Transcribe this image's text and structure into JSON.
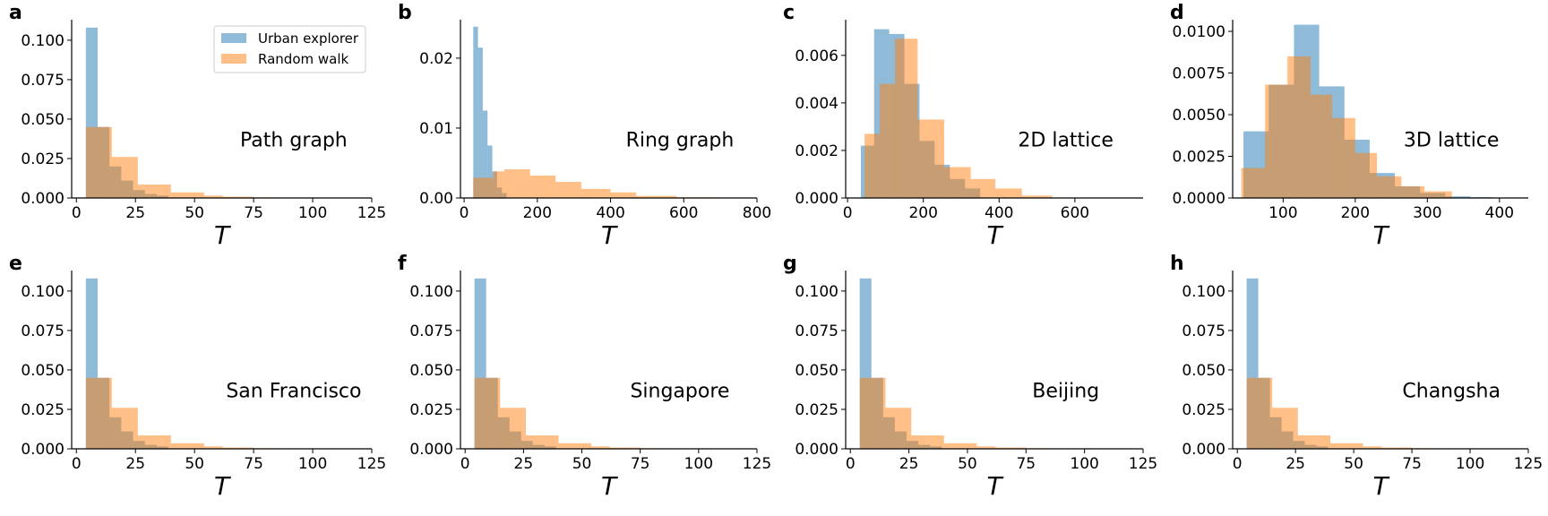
{
  "figure": {
    "x_label": "T",
    "colors": {
      "urban": "#1f77b4",
      "random": "#ff7f0e"
    }
  },
  "legend": {
    "urban_label": "Urban explorer",
    "random_label": "Random walk"
  },
  "chart_data": [
    {
      "type": "histogram",
      "letter": "a",
      "annotation": "Path graph",
      "xlabel": "T",
      "xlim": [
        -2,
        125
      ],
      "ylim": [
        0,
        0.113
      ],
      "xticks": [
        "0",
        "25",
        "50",
        "75",
        "100",
        "125"
      ],
      "xtick_values": [
        0,
        25,
        50,
        75,
        100,
        125
      ],
      "yticks": [
        "0.000",
        "0.025",
        "0.050",
        "0.075",
        "0.100"
      ],
      "ytick_values": [
        0,
        0.025,
        0.05,
        0.075,
        0.1
      ],
      "legend": true,
      "series": [
        {
          "name": "Urban explorer",
          "color": "#1f77b4",
          "edges": [
            4,
            9,
            14,
            19,
            24,
            29,
            34,
            39
          ],
          "heights": [
            0.108,
            0.045,
            0.02,
            0.011,
            0.005,
            0.0025,
            0.0015
          ]
        },
        {
          "name": "Random walk",
          "color": "#ff7f0e",
          "edges": [
            4,
            15,
            26,
            40,
            54,
            62,
            75,
            85,
            120
          ],
          "heights": [
            0.045,
            0.026,
            0.0085,
            0.0035,
            0.0015,
            0.0008,
            0.0004,
            0.0003
          ]
        }
      ]
    },
    {
      "type": "histogram",
      "letter": "b",
      "annotation": "Ring graph",
      "xlabel": "T",
      "xlim": [
        -10,
        800
      ],
      "ylim": [
        0,
        0.0255
      ],
      "xticks": [
        "0",
        "200",
        "400",
        "600",
        "800"
      ],
      "xtick_values": [
        0,
        200,
        400,
        600,
        800
      ],
      "yticks": [
        "0.00",
        "0.01",
        "0.02"
      ],
      "ytick_values": [
        0,
        0.01,
        0.02
      ],
      "legend": false,
      "series": [
        {
          "name": "Urban explorer",
          "color": "#1f77b4",
          "edges": [
            25,
            38,
            51,
            64,
            77,
            90,
            103,
            116
          ],
          "heights": [
            0.0245,
            0.0215,
            0.0125,
            0.0075,
            0.0038,
            0.0015,
            0.0007
          ]
        },
        {
          "name": "Random walk",
          "color": "#ff7f0e",
          "edges": [
            25,
            80,
            110,
            180,
            250,
            320,
            400,
            470,
            580,
            700
          ],
          "heights": [
            0.0029,
            0.0038,
            0.0041,
            0.0032,
            0.0023,
            0.0013,
            0.0008,
            0.0003,
            0.0001
          ]
        }
      ]
    },
    {
      "type": "histogram",
      "letter": "c",
      "annotation": "2D lattice",
      "xlabel": "T",
      "xlim": [
        -5,
        780
      ],
      "ylim": [
        0,
        0.0075
      ],
      "xticks": [
        "0",
        "200",
        "400",
        "600"
      ],
      "xtick_values": [
        0,
        200,
        400,
        600
      ],
      "yticks": [
        "0.000",
        "0.002",
        "0.004",
        "0.006"
      ],
      "ytick_values": [
        0,
        0.002,
        0.004,
        0.006
      ],
      "legend": false,
      "series": [
        {
          "name": "Urban explorer",
          "color": "#1f77b4",
          "edges": [
            35,
            70,
            110,
            150,
            190,
            230,
            270,
            310,
            350
          ],
          "heights": [
            0.0022,
            0.0071,
            0.0069,
            0.0048,
            0.0024,
            0.0014,
            0.0008,
            0.0004
          ]
        },
        {
          "name": "Random walk",
          "color": "#ff7f0e",
          "edges": [
            45,
            85,
            125,
            185,
            255,
            325,
            390,
            460,
            540
          ],
          "heights": [
            0.0027,
            0.0048,
            0.0067,
            0.0033,
            0.0013,
            0.0008,
            0.0004,
            0.0001
          ]
        }
      ]
    },
    {
      "type": "histogram",
      "letter": "d",
      "annotation": "3D lattice",
      "xlabel": "T",
      "xlim": [
        30,
        440
      ],
      "ylim": [
        0,
        0.0107
      ],
      "xticks": [
        "100",
        "200",
        "300",
        "400"
      ],
      "xtick_values": [
        100,
        200,
        300,
        400
      ],
      "yticks": [
        "0.0000",
        "0.0025",
        "0.0050",
        "0.0075",
        "0.0100"
      ],
      "ytick_values": [
        0,
        0.0025,
        0.005,
        0.0075,
        0.01
      ],
      "legend": false,
      "series": [
        {
          "name": "Urban explorer",
          "color": "#1f77b4",
          "edges": [
            45,
            80,
            115,
            150,
            185,
            220,
            255,
            290,
            325,
            360,
            390
          ],
          "heights": [
            0.004,
            0.0068,
            0.0104,
            0.0067,
            0.0035,
            0.0015,
            0.0007,
            0.0003,
            0.0001,
            5e-05
          ]
        },
        {
          "name": "Random walk",
          "color": "#ff7f0e",
          "edges": [
            42,
            75,
            106,
            138,
            168,
            200,
            230,
            264,
            296,
            334
          ],
          "heights": [
            0.0018,
            0.0068,
            0.0085,
            0.0062,
            0.0048,
            0.0027,
            0.0013,
            0.0007,
            0.0004
          ]
        }
      ]
    },
    {
      "type": "histogram",
      "letter": "e",
      "annotation": "San Francisco",
      "xlabel": "T",
      "xlim": [
        -2,
        125
      ],
      "ylim": [
        0,
        0.113
      ],
      "xticks": [
        "0",
        "25",
        "50",
        "75",
        "100",
        "125"
      ],
      "xtick_values": [
        0,
        25,
        50,
        75,
        100,
        125
      ],
      "yticks": [
        "0.000",
        "0.025",
        "0.050",
        "0.075",
        "0.100"
      ],
      "ytick_values": [
        0,
        0.025,
        0.05,
        0.075,
        0.1
      ],
      "legend": false,
      "series": [
        {
          "name": "Urban explorer",
          "color": "#1f77b4",
          "edges": [
            4,
            9,
            14,
            19,
            24,
            29,
            34,
            39
          ],
          "heights": [
            0.108,
            0.045,
            0.02,
            0.011,
            0.005,
            0.0025,
            0.0015
          ]
        },
        {
          "name": "Random walk",
          "color": "#ff7f0e",
          "edges": [
            4,
            15,
            26,
            40,
            54,
            62,
            75,
            85,
            120
          ],
          "heights": [
            0.045,
            0.026,
            0.0085,
            0.0035,
            0.0015,
            0.0008,
            0.0004,
            0.0003
          ]
        }
      ]
    },
    {
      "type": "histogram",
      "letter": "f",
      "annotation": "Singapore",
      "xlabel": "T",
      "xlim": [
        -2,
        125
      ],
      "ylim": [
        0,
        0.113
      ],
      "xticks": [
        "0",
        "25",
        "50",
        "75",
        "100",
        "125"
      ],
      "xtick_values": [
        0,
        25,
        50,
        75,
        100,
        125
      ],
      "yticks": [
        "0.000",
        "0.025",
        "0.050",
        "0.075",
        "0.100"
      ],
      "ytick_values": [
        0,
        0.025,
        0.05,
        0.075,
        0.1
      ],
      "legend": false,
      "series": [
        {
          "name": "Urban explorer",
          "color": "#1f77b4",
          "edges": [
            4,
            9,
            14,
            19,
            24,
            29,
            34,
            39
          ],
          "heights": [
            0.108,
            0.045,
            0.02,
            0.011,
            0.005,
            0.0025,
            0.0015
          ]
        },
        {
          "name": "Random walk",
          "color": "#ff7f0e",
          "edges": [
            4,
            15,
            26,
            40,
            54,
            62,
            75,
            85,
            120
          ],
          "heights": [
            0.045,
            0.026,
            0.0085,
            0.0035,
            0.0015,
            0.0008,
            0.0004,
            0.0003
          ]
        }
      ]
    },
    {
      "type": "histogram",
      "letter": "g",
      "annotation": "Beijing",
      "xlabel": "T",
      "xlim": [
        -2,
        125
      ],
      "ylim": [
        0,
        0.113
      ],
      "xticks": [
        "0",
        "25",
        "50",
        "75",
        "100",
        "125"
      ],
      "xtick_values": [
        0,
        25,
        50,
        75,
        100,
        125
      ],
      "yticks": [
        "0.000",
        "0.025",
        "0.050",
        "0.075",
        "0.100"
      ],
      "ytick_values": [
        0,
        0.025,
        0.05,
        0.075,
        0.1
      ],
      "legend": false,
      "series": [
        {
          "name": "Urban explorer",
          "color": "#1f77b4",
          "edges": [
            4,
            9,
            14,
            19,
            24,
            29,
            34,
            39
          ],
          "heights": [
            0.108,
            0.045,
            0.02,
            0.011,
            0.005,
            0.0025,
            0.0015
          ]
        },
        {
          "name": "Random walk",
          "color": "#ff7f0e",
          "edges": [
            4,
            15,
            26,
            40,
            54,
            62,
            75,
            85,
            120
          ],
          "heights": [
            0.045,
            0.026,
            0.0085,
            0.0035,
            0.0015,
            0.0008,
            0.0004,
            0.0003
          ]
        }
      ]
    },
    {
      "type": "histogram",
      "letter": "h",
      "annotation": "Changsha",
      "xlabel": "T",
      "xlim": [
        -2,
        125
      ],
      "ylim": [
        0,
        0.113
      ],
      "xticks": [
        "0",
        "25",
        "50",
        "75",
        "100",
        "125"
      ],
      "xtick_values": [
        0,
        25,
        50,
        75,
        100,
        125
      ],
      "yticks": [
        "0.000",
        "0.025",
        "0.050",
        "0.075",
        "0.100"
      ],
      "ytick_values": [
        0,
        0.025,
        0.05,
        0.075,
        0.1
      ],
      "legend": false,
      "series": [
        {
          "name": "Urban explorer",
          "color": "#1f77b4",
          "edges": [
            4,
            9,
            14,
            19,
            24,
            29,
            34,
            39
          ],
          "heights": [
            0.108,
            0.045,
            0.02,
            0.011,
            0.005,
            0.0025,
            0.0015
          ]
        },
        {
          "name": "Random walk",
          "color": "#ff7f0e",
          "edges": [
            4,
            15,
            26,
            40,
            54,
            62,
            75,
            85,
            120
          ],
          "heights": [
            0.045,
            0.026,
            0.0085,
            0.0035,
            0.0015,
            0.0008,
            0.0004,
            0.0003
          ]
        }
      ]
    }
  ]
}
